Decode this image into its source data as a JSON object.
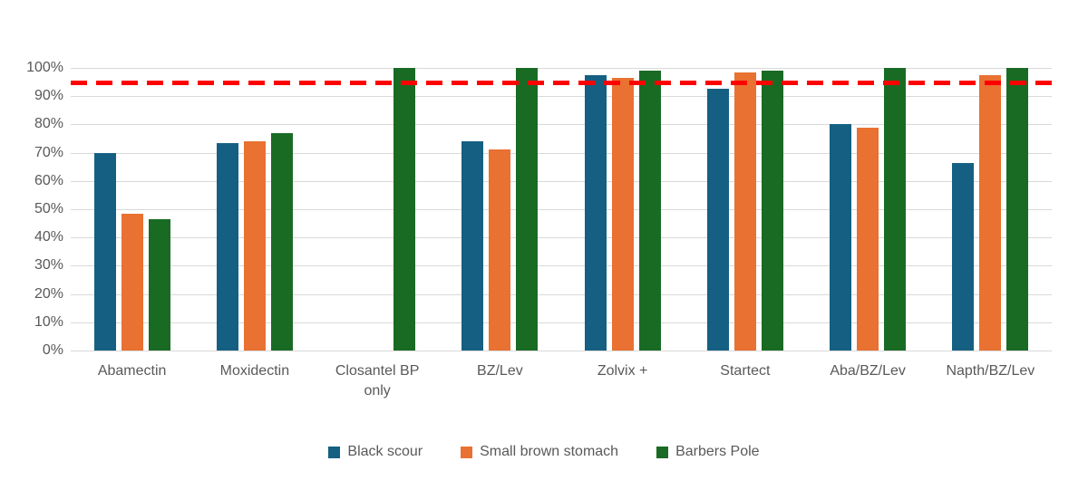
{
  "chart_data": {
    "type": "bar",
    "title": "",
    "xlabel": "",
    "ylabel": "",
    "categories": [
      "Abamectin",
      "Moxidectin",
      "Closantel BP only",
      "BZ/Lev",
      "Zolvix +",
      "Startect",
      "Aba/BZ/Lev",
      "Napth/BZ/Lev"
    ],
    "series": [
      {
        "name": "Black scour",
        "color": "#156082",
        "values": [
          70,
          73.5,
          null,
          74,
          97.5,
          92.5,
          80,
          66.5
        ]
      },
      {
        "name": "Small brown stomach",
        "color": "#E97132",
        "values": [
          48.5,
          74,
          null,
          71,
          96.5,
          98.5,
          79,
          97.5
        ]
      },
      {
        "name": "Barbers Pole",
        "color": "#196B24",
        "values": [
          46.5,
          77,
          100,
          100,
          99,
          99,
          100,
          100
        ]
      }
    ],
    "reference_line": {
      "value": 95,
      "color": "#FF0000",
      "style": "dashed"
    },
    "ylim": [
      0,
      100
    ],
    "ytick_step": 10,
    "ytick_labels": [
      "0%",
      "10%",
      "20%",
      "30%",
      "40%",
      "50%",
      "60%",
      "70%",
      "80%",
      "90%",
      "100%"
    ],
    "grid": true,
    "gridline_color": "#d9d9d9",
    "axis_text_color": "#595959",
    "legend_position": "bottom"
  }
}
